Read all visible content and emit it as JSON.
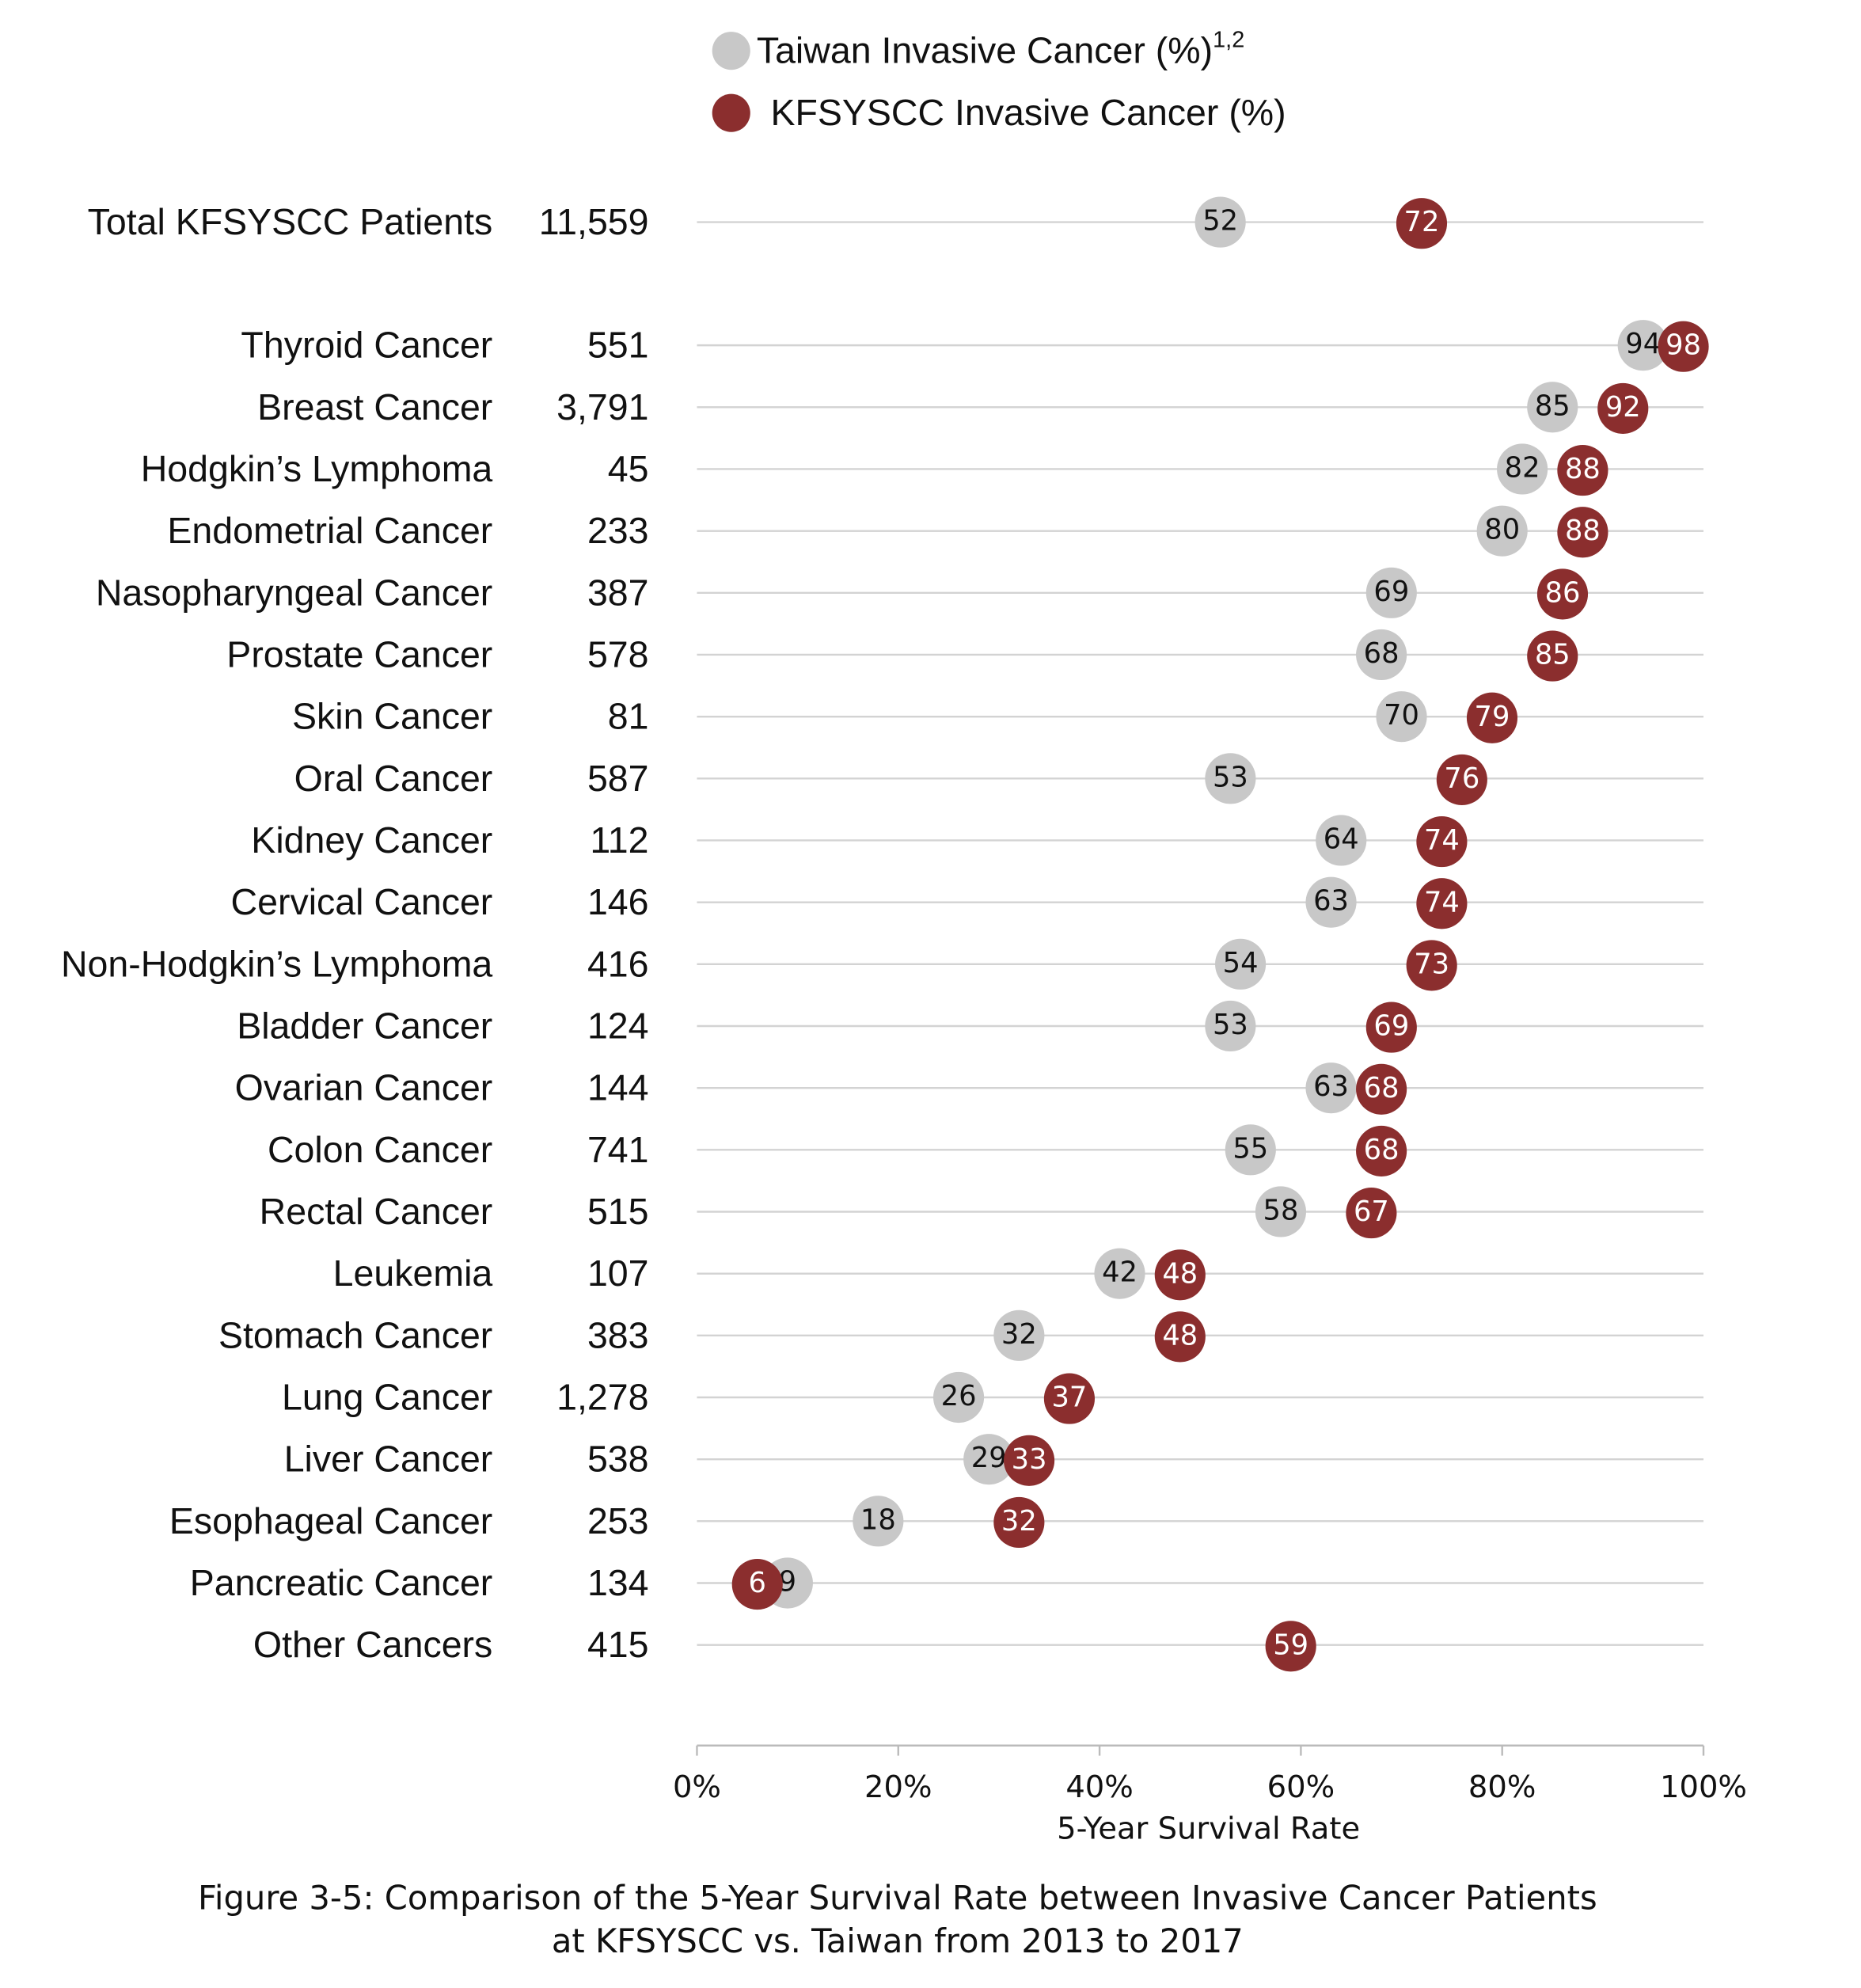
{
  "chart_data": {
    "type": "dot",
    "categories": [
      "Total KFSYSCC Patients",
      "Thyroid Cancer",
      "Breast Cancer",
      "Hodgkin’s Lymphoma",
      "Endometrial Cancer",
      "Nasopharyngeal Cancer",
      "Prostate Cancer",
      "Skin Cancer",
      "Oral Cancer",
      "Kidney Cancer",
      "Cervical Cancer",
      "Non-Hodgkin’s Lymphoma",
      "Bladder Cancer",
      "Ovarian Cancer",
      "Colon Cancer",
      "Rectal Cancer",
      "Leukemia",
      "Stomach Cancer",
      "Lung Cancer",
      "Liver Cancer",
      "Esophageal Cancer",
      "Pancreatic Cancer",
      "Other Cancers"
    ],
    "patients": [
      "11,559",
      "551",
      "3,791",
      "45",
      "233",
      "387",
      "578",
      "81",
      "587",
      "112",
      "146",
      "416",
      "124",
      "144",
      "741",
      "515",
      "107",
      "383",
      "1,278",
      "538",
      "253",
      "134",
      "415"
    ],
    "series": [
      {
        "name": "Taiwan Invasive Cancer (%)",
        "footnote_marks": "1,2",
        "color": "#c8c8c8",
        "label_color": "#111111",
        "values": [
          52,
          94,
          85,
          82,
          80,
          69,
          68,
          70,
          53,
          64,
          63,
          54,
          53,
          63,
          55,
          58,
          42,
          32,
          26,
          29,
          18,
          9,
          null
        ]
      },
      {
        "name": "KFSYSCC Invasive Cancer (%)",
        "color": "#8b2e2e",
        "label_color": "#ffffff",
        "values": [
          72,
          98,
          92,
          88,
          88,
          86,
          85,
          79,
          76,
          74,
          74,
          73,
          69,
          68,
          68,
          67,
          48,
          48,
          37,
          33,
          32,
          6,
          59
        ]
      }
    ],
    "xlim": [
      0,
      100
    ],
    "xticks": [
      {
        "value": 0,
        "label": "0%"
      },
      {
        "value": 20,
        "label": "20%"
      },
      {
        "value": 40,
        "label": "40%"
      },
      {
        "value": 60,
        "label": "60%"
      },
      {
        "value": 80,
        "label": "80%"
      },
      {
        "value": 100,
        "label": "100%"
      }
    ],
    "x_label": "5-Year Survival Rate",
    "grid": true,
    "caption": [
      "Figure 3-5: Comparison of the 5-Year Survival Rate between Invasive Cancer Patients",
      "at KFSYSCC vs. Taiwan from 2013 to 2017"
    ]
  }
}
